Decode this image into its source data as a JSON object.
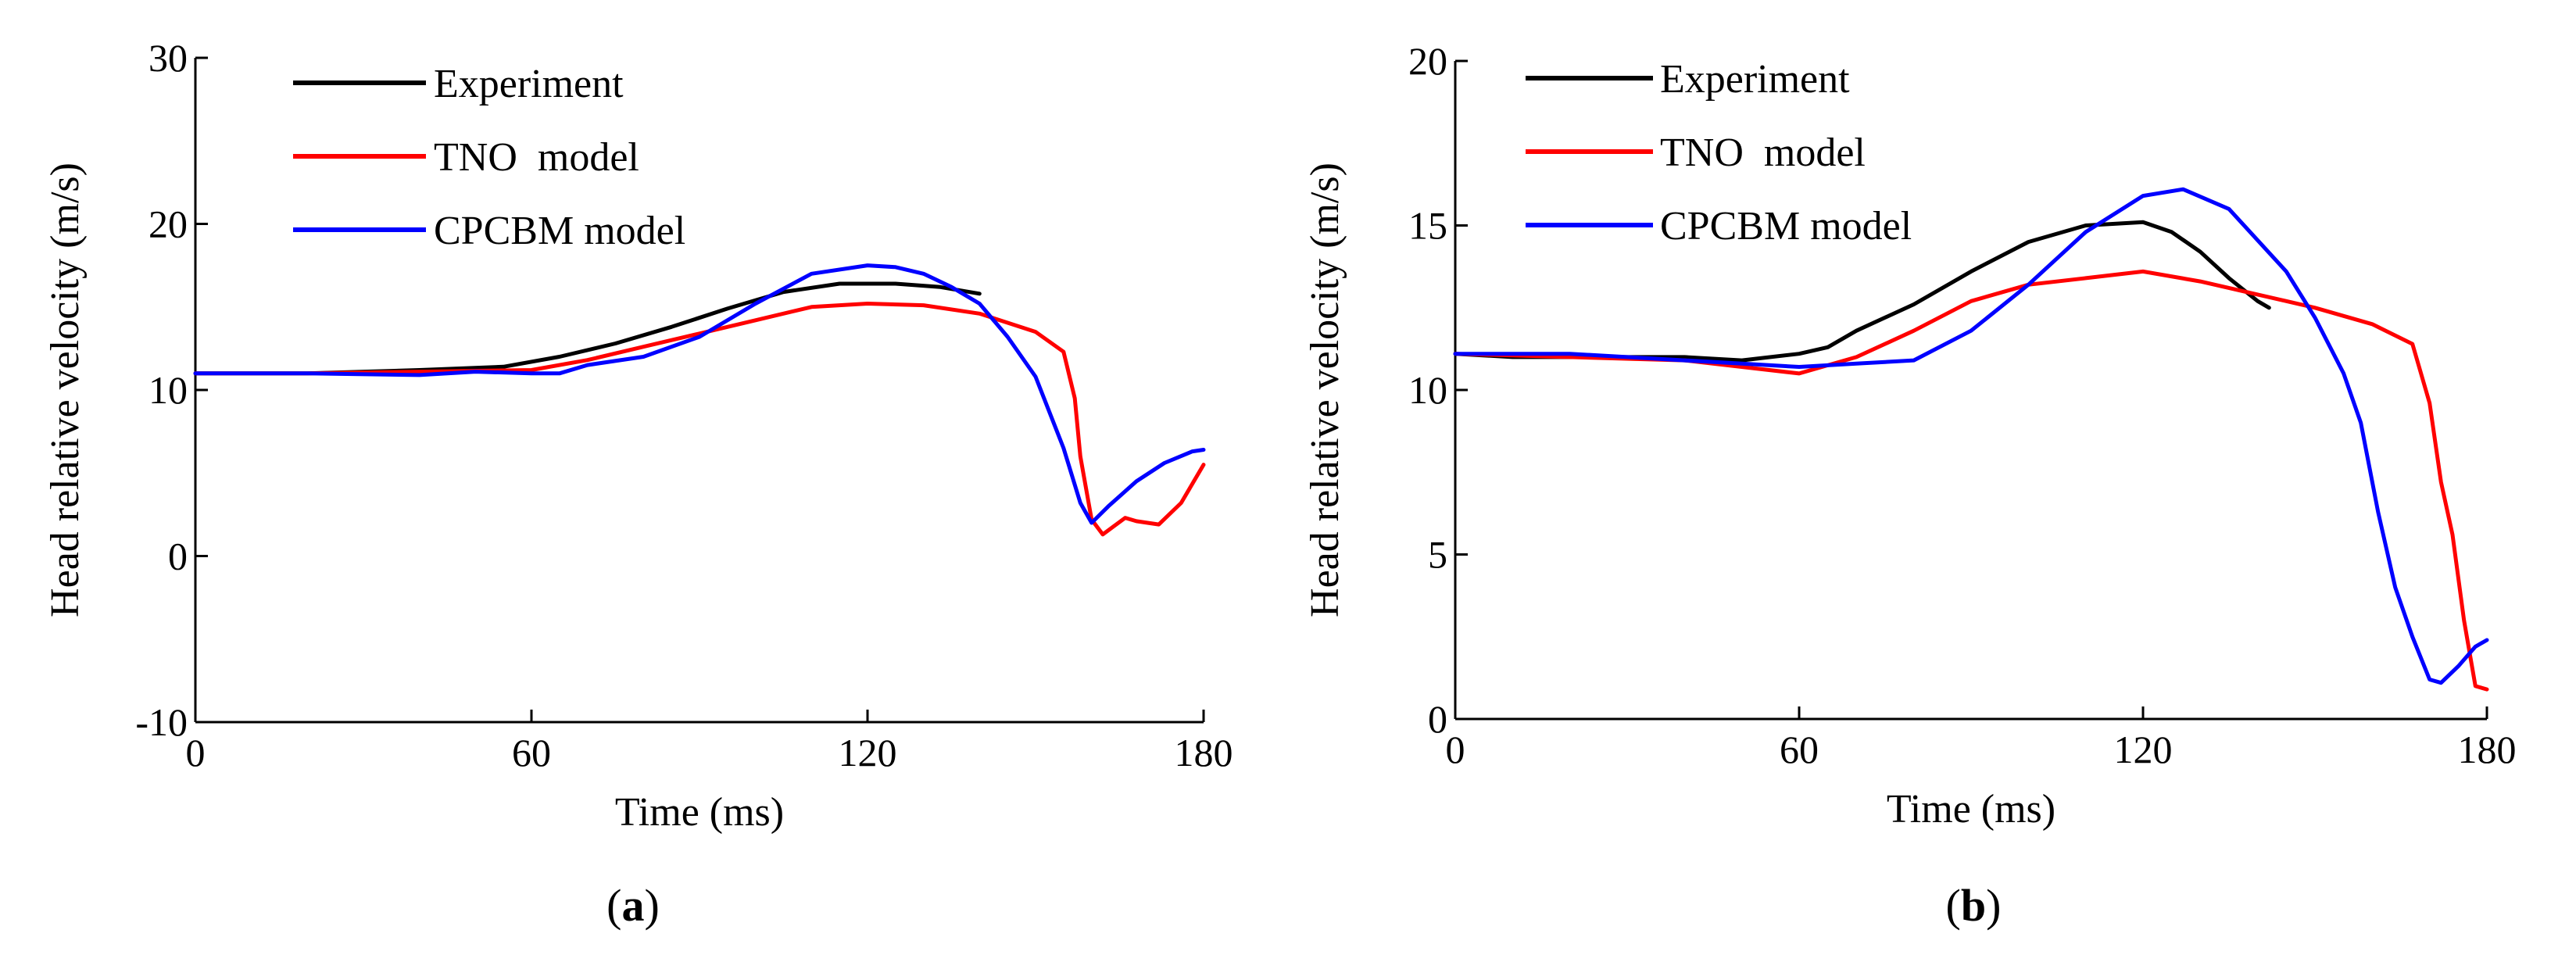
{
  "chart_data": [
    {
      "panel_label": "a",
      "type": "line",
      "title": "",
      "xlabel": "Time (ms)",
      "ylabel": "Head relative velocity (m/s)",
      "xlim": [
        0,
        180
      ],
      "ylim": [
        -10,
        30
      ],
      "xticks": [
        0,
        60,
        120,
        180
      ],
      "yticks": [
        -10,
        0,
        10,
        20,
        30
      ],
      "grid": false,
      "legend_position": "top-left",
      "series": [
        {
          "name": "Experiment",
          "color": "#000000",
          "x": [
            0,
            20,
            40,
            55,
            65,
            75,
            85,
            95,
            105,
            115,
            125,
            133,
            140
          ],
          "y": [
            11,
            11,
            11.2,
            11.4,
            12,
            12.8,
            13.8,
            14.9,
            15.9,
            16.4,
            16.4,
            16.2,
            15.8
          ]
        },
        {
          "name": "TNO  model",
          "color": "#ff0000",
          "x": [
            0,
            20,
            40,
            60,
            70,
            80,
            90,
            100,
            110,
            120,
            130,
            140,
            150,
            155,
            157,
            158,
            160,
            162,
            164,
            166,
            168,
            172,
            176,
            180
          ],
          "y": [
            11,
            11,
            11.1,
            11.2,
            11.8,
            12.6,
            13.4,
            14.2,
            15,
            15.2,
            15.1,
            14.6,
            13.5,
            12.3,
            9.5,
            6,
            2.2,
            1.3,
            1.8,
            2.3,
            2.1,
            1.9,
            3.2,
            5.5
          ]
        },
        {
          "name": "CPCBM model",
          "color": "#0000ff",
          "x": [
            0,
            20,
            40,
            50,
            60,
            65,
            70,
            80,
            90,
            100,
            110,
            120,
            125,
            130,
            135,
            140,
            145,
            150,
            155,
            158,
            160,
            163,
            168,
            173,
            178,
            180
          ],
          "y": [
            11,
            11,
            10.9,
            11.1,
            11,
            11,
            11.5,
            12,
            13.2,
            15.2,
            17,
            17.5,
            17.4,
            17,
            16.2,
            15.2,
            13.2,
            10.8,
            6.5,
            3.2,
            2,
            3,
            4.5,
            5.6,
            6.3,
            6.4
          ]
        }
      ]
    },
    {
      "panel_label": "b",
      "type": "line",
      "title": "",
      "xlabel": "Time (ms)",
      "ylabel": "Head relative velocity (m/s)",
      "xlim": [
        0,
        180
      ],
      "ylim": [
        0,
        20
      ],
      "xticks": [
        0,
        60,
        120,
        180
      ],
      "yticks": [
        0,
        5,
        10,
        15,
        20
      ],
      "grid": false,
      "legend_position": "top-left",
      "series": [
        {
          "name": "Experiment",
          "color": "#000000",
          "x": [
            0,
            10,
            20,
            30,
            40,
            50,
            60,
            65,
            70,
            80,
            90,
            100,
            110,
            120,
            125,
            130,
            135,
            140,
            142
          ],
          "y": [
            11.1,
            11,
            11,
            11,
            11,
            10.9,
            11.1,
            11.3,
            11.8,
            12.6,
            13.6,
            14.5,
            15,
            15.1,
            14.8,
            14.2,
            13.4,
            12.7,
            12.5
          ]
        },
        {
          "name": "TNO  model",
          "color": "#ff0000",
          "x": [
            0,
            20,
            40,
            50,
            60,
            70,
            80,
            90,
            100,
            110,
            120,
            130,
            140,
            150,
            160,
            167,
            170,
            172,
            174,
            176,
            178,
            180
          ],
          "y": [
            11.1,
            11,
            10.9,
            10.7,
            10.5,
            11,
            11.8,
            12.7,
            13.2,
            13.4,
            13.6,
            13.3,
            12.9,
            12.5,
            12,
            11.4,
            9.6,
            7.2,
            5.6,
            3,
            1,
            0.9
          ]
        },
        {
          "name": "CPCBM model",
          "color": "#0000ff",
          "x": [
            0,
            20,
            40,
            50,
            60,
            70,
            80,
            90,
            100,
            110,
            120,
            127,
            135,
            145,
            150,
            155,
            158,
            161,
            164,
            167,
            170,
            172,
            175,
            178,
            180
          ],
          "y": [
            11.1,
            11.1,
            10.9,
            10.8,
            10.7,
            10.8,
            10.9,
            11.8,
            13.2,
            14.8,
            15.9,
            16.1,
            15.5,
            13.6,
            12.2,
            10.5,
            9,
            6.3,
            4,
            2.5,
            1.2,
            1.1,
            1.6,
            2.2,
            2.4
          ]
        }
      ]
    }
  ]
}
